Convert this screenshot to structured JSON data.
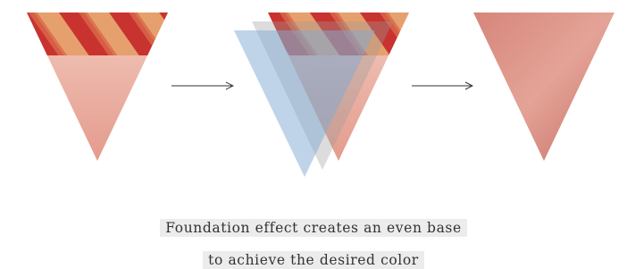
{
  "caption": {
    "lines": [
      "Foundation effect creates an even base",
      "to achieve the desired color"
    ]
  }
}
